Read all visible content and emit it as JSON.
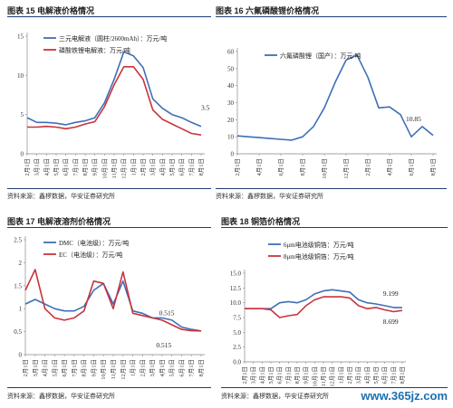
{
  "source_text": "资料来源：鑫椤数据，华安证券研究所",
  "watermark": "www.365jz.com",
  "chart_data": [
    {
      "id": "c15",
      "panel_title": "图表 15  电解液价格情况",
      "type": "line",
      "categories": [
        "2月1日",
        "3月1日",
        "4月1日",
        "5月1日",
        "6月1日",
        "7月1日",
        "8月1日",
        "9月1日",
        "10月1日",
        "11月1日",
        "12月1日",
        "1月1日",
        "2月1日",
        "3月1日",
        "4月1日",
        "5月1日",
        "6月1日",
        "7月1日",
        "8月1日"
      ],
      "x_ticks": [
        "2月1日",
        "3月1日",
        "4月1日",
        "5月1日",
        "6月1日",
        "7月1日",
        "8月1日",
        "9月1日",
        "10月1日",
        "11月1日",
        "12月1日",
        "1月1日",
        "2月1日",
        "3月1日",
        "4月1日",
        "5月1日",
        "6月1日",
        "7月1日",
        "8月1日"
      ],
      "ylim": [
        0,
        15
      ],
      "yticks": [
        0,
        5,
        10,
        15
      ],
      "legend_position": "top",
      "annotations": [
        {
          "text": "3.5",
          "x_index": 18,
          "y": 5.6
        }
      ],
      "series": [
        {
          "name": "三元电解液（圆柱/2600mAh）：万元/吨",
          "color": "#3e6fb8",
          "values": [
            4.6,
            4.0,
            4.0,
            3.9,
            3.7,
            4.0,
            4.2,
            4.6,
            6.5,
            9.5,
            13.0,
            12.5,
            11.0,
            7.0,
            5.8,
            5.0,
            4.6,
            4.0,
            3.5
          ]
        },
        {
          "name": "磷酸铁锂电解液：万元/吨",
          "color": "#c8343b",
          "values": [
            3.4,
            3.4,
            3.5,
            3.4,
            3.2,
            3.4,
            3.8,
            4.1,
            6.0,
            8.8,
            11.1,
            11.1,
            9.5,
            5.6,
            4.4,
            3.8,
            3.2,
            2.6,
            2.4
          ]
        }
      ]
    },
    {
      "id": "c16",
      "panel_title": "图表 16  六氟磷酸锂价格情况",
      "type": "line",
      "categories": [
        "2月1日",
        "3月1日",
        "4月1日",
        "5月1日",
        "6月1日",
        "7月1日",
        "8月1日",
        "9月1日",
        "10月1日",
        "11月1日",
        "12月1日",
        "1月1日",
        "2月1日",
        "3月1日",
        "4月1日",
        "5月1日",
        "6月1日",
        "7月1日",
        "8月1日"
      ],
      "x_ticks": [
        "2月1日",
        "4月1日",
        "6月1日",
        "8月1日",
        "10月1日",
        "12月1日",
        "2月1日",
        "4月1日",
        "6月1日",
        "8月1日"
      ],
      "x_tick_indices": [
        0,
        2,
        4,
        6,
        8,
        10,
        12,
        14,
        16,
        18
      ],
      "ylim": [
        0,
        60
      ],
      "yticks": [
        0,
        10,
        20,
        30,
        40,
        50,
        60
      ],
      "legend_position": "top",
      "annotations": [
        {
          "text": "10.85",
          "x_index": 15.5,
          "y": 19
        }
      ],
      "series": [
        {
          "name": "六氟磷酸锂（国产）：万元/吨",
          "color": "#3e6fb8",
          "values": [
            10.5,
            10.0,
            9.5,
            9.0,
            8.5,
            8.0,
            10.0,
            16.0,
            27.0,
            42.0,
            55.0,
            58.0,
            45.0,
            27.0,
            27.5,
            23.0,
            10.0,
            16.0,
            10.85
          ]
        }
      ]
    },
    {
      "id": "c17",
      "panel_title": "图表 17  电解液溶剂价格情况",
      "type": "line",
      "categories": [
        "2月1日",
        "3月1日",
        "4月1日",
        "5月1日",
        "6月1日",
        "7月1日",
        "8月1日",
        "9月1日",
        "10月1日",
        "11月1日",
        "12月1日",
        "1月1日",
        "2月1日",
        "3月1日",
        "4月1日",
        "5月1日",
        "6月1日",
        "7月1日",
        "8月1日"
      ],
      "x_ticks": [
        "2月1日",
        "3月1日",
        "4月1日",
        "5月1日",
        "6月1日",
        "7月1日",
        "8月1日",
        "9月1日",
        "10月1日",
        "11月1日",
        "12月1日",
        "1月1日",
        "2月1日",
        "3月1日",
        "4月1日",
        "5月1日",
        "6月1日",
        "7月1日",
        "8月1日"
      ],
      "ylim": [
        0,
        2.5
      ],
      "yticks": [
        0,
        0.5,
        1,
        1.5,
        2,
        2.5
      ],
      "legend_position": "top-left",
      "annotations": [
        {
          "text": "0.515",
          "x_index": 13.7,
          "y": 0.86
        },
        {
          "text": "0.515",
          "x_index": 13.4,
          "y": 0.16
        }
      ],
      "series": [
        {
          "name": "DMC（电池级）：万元/吨",
          "color": "#3e6fb8",
          "values": [
            1.1,
            1.2,
            1.1,
            1.0,
            0.95,
            0.95,
            1.05,
            1.4,
            1.55,
            1.1,
            1.6,
            0.95,
            0.9,
            0.8,
            0.8,
            0.75,
            0.6,
            0.55,
            0.515
          ]
        },
        {
          "name": "EC（电池级）：万元/吨",
          "color": "#c8343b",
          "values": [
            1.4,
            1.85,
            1.0,
            0.8,
            0.75,
            0.8,
            0.95,
            1.6,
            1.55,
            1.0,
            1.8,
            0.9,
            0.85,
            0.8,
            0.75,
            0.65,
            0.55,
            0.52,
            0.515
          ]
        }
      ]
    },
    {
      "id": "c18",
      "panel_title": "图表 18  铜箔价格情况",
      "type": "line",
      "categories": [
        "2月1日",
        "3月1日",
        "4月1日",
        "5月1日",
        "6月1日",
        "7月1日",
        "8月1日",
        "9月1日",
        "10月1日",
        "11月1日",
        "12月1日",
        "1月1日",
        "2月1日",
        "3月1日",
        "4月1日",
        "5月1日",
        "6月1日",
        "7月1日",
        "8月1日"
      ],
      "x_ticks": [
        "2月1日",
        "3月1日",
        "4月1日",
        "5月1日",
        "6月1日",
        "7月1日",
        "8月1日",
        "9月1日",
        "10月1日",
        "11月1日",
        "12月1日",
        "1月1日",
        "2月1日",
        "3月1日",
        "4月1日",
        "5月1日",
        "6月1日",
        "7月1日",
        "8月1日"
      ],
      "ylim": [
        0,
        15
      ],
      "yticks": [
        0,
        2.5,
        5,
        7.5,
        10,
        12.5,
        15
      ],
      "ytick_labels": [
        "0.0",
        "2.5",
        "5.0",
        "7.5",
        "10.0",
        "12.5",
        "15.0"
      ],
      "legend_position": "top",
      "annotations": [
        {
          "text": "9.199",
          "x_index": 15.8,
          "y": 11.2
        },
        {
          "text": "8.699",
          "x_index": 15.8,
          "y": 6.4
        }
      ],
      "series": [
        {
          "name": "6μm电池级铜箔：万元/吨",
          "color": "#3e6fb8",
          "values": [
            9.0,
            9.0,
            9.0,
            9.0,
            10.0,
            10.2,
            10.0,
            10.5,
            11.5,
            12.0,
            12.2,
            12.0,
            11.8,
            10.5,
            10.0,
            9.8,
            9.5,
            9.2,
            9.199
          ]
        },
        {
          "name": "8μm电池级铜箔：万元/吨",
          "color": "#c8343b",
          "values": [
            9.0,
            9.0,
            9.0,
            8.8,
            7.5,
            7.8,
            8.0,
            9.5,
            10.5,
            11.0,
            11.0,
            11.0,
            10.8,
            9.5,
            9.0,
            9.2,
            8.8,
            8.5,
            8.699
          ]
        }
      ]
    }
  ]
}
